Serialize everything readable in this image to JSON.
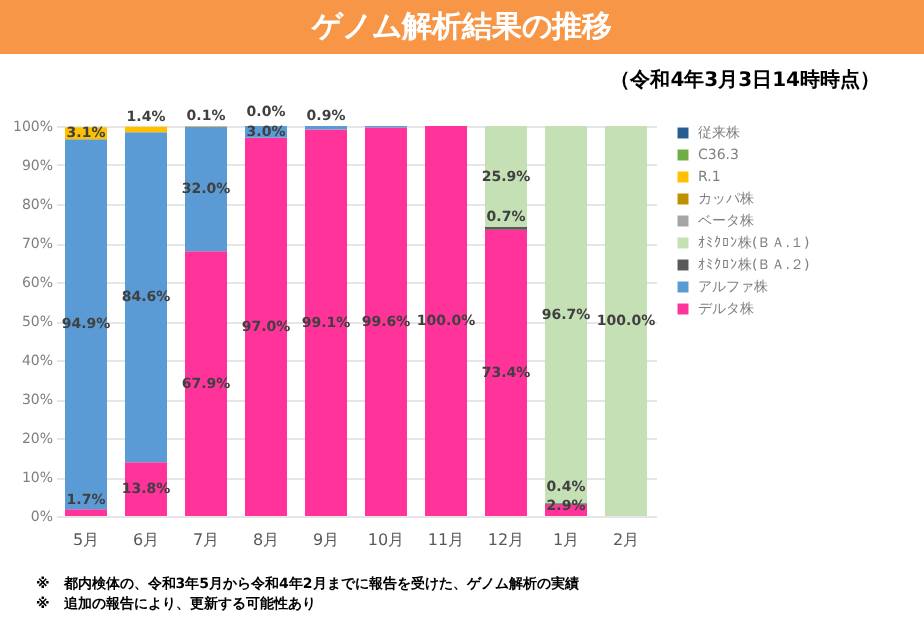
{
  "chart_data": {
    "type": "bar",
    "title": "ゲノム解析結果の推移",
    "subtitle": "（令和4年3月3日14時時点）",
    "categories": [
      "5月",
      "6月",
      "7月",
      "8月",
      "9月",
      "10月",
      "11月",
      "12月",
      "1月",
      "2月"
    ],
    "stacked": true,
    "legend": "right",
    "grid": "y",
    "ylim": [
      0,
      100
    ],
    "yticks": [
      {
        "value": 0,
        "label": "0%"
      },
      {
        "value": 10,
        "label": "10%"
      },
      {
        "value": 20,
        "label": "20%"
      },
      {
        "value": 30,
        "label": "30%"
      },
      {
        "value": 40,
        "label": "40%"
      },
      {
        "value": 50,
        "label": "50%"
      },
      {
        "value": 60,
        "label": "60%"
      },
      {
        "value": 70,
        "label": "70%"
      },
      {
        "value": 80,
        "label": "80%"
      },
      {
        "value": 90,
        "label": "90%"
      },
      {
        "value": 100,
        "label": "100%"
      }
    ],
    "series": [
      {
        "name": "デルタ株",
        "color": "#ff3399",
        "values": [
          1.7,
          13.8,
          67.9,
          97.0,
          99.1,
          99.6,
          100.0,
          73.4,
          2.9,
          null
        ],
        "value_labels": [
          "1.7%",
          "13.8%",
          "67.9%",
          "97.0%",
          "99.1%",
          "99.6%",
          "100.0%",
          "73.4%",
          "2.9%",
          null
        ]
      },
      {
        "name": "アルファ株",
        "color": "#5b9bd5",
        "values": [
          94.9,
          84.6,
          32.0,
          3.0,
          0.9,
          0.4,
          null,
          null,
          null,
          null
        ],
        "value_labels": [
          "94.9%",
          "84.6%",
          "32.0%",
          "3.0%",
          "0.9%",
          null,
          null,
          null,
          null,
          null
        ]
      },
      {
        "name": "ｵﾐｸﾛﾝ株(ＢＡ.２)",
        "color": "#595959",
        "values": [
          null,
          null,
          null,
          null,
          null,
          null,
          null,
          0.7,
          0.4,
          null
        ],
        "value_labels": [
          null,
          null,
          null,
          null,
          null,
          null,
          null,
          "0.7%",
          "0.4%",
          null
        ]
      },
      {
        "name": "ｵﾐｸﾛﾝ株(ＢＡ.１)",
        "color": "#c5e0b4",
        "values": [
          null,
          null,
          null,
          null,
          null,
          null,
          null,
          25.9,
          96.7,
          100.0
        ],
        "value_labels": [
          null,
          null,
          null,
          null,
          null,
          null,
          null,
          "25.9%",
          "96.7%",
          "100.0%"
        ]
      },
      {
        "name": "ベータ株",
        "color": "#a5a5a5",
        "values": [
          null,
          null,
          null,
          null,
          null,
          null,
          null,
          null,
          null,
          null
        ]
      },
      {
        "name": "カッパ株",
        "color": "#bf9000",
        "values": [
          null,
          null,
          null,
          null,
          null,
          null,
          null,
          null,
          null,
          null
        ]
      },
      {
        "name": "R.1",
        "color": "#ffc000",
        "values": [
          3.1,
          1.4,
          0.1,
          0.0,
          null,
          null,
          null,
          null,
          null,
          null
        ],
        "value_labels": [
          "3.1%",
          "1.4%",
          "0.1%",
          "0.0%",
          null,
          null,
          null,
          null,
          null,
          null
        ]
      },
      {
        "name": "C36.3",
        "color": "#70ad47",
        "values": [
          null,
          null,
          null,
          null,
          null,
          null,
          null,
          null,
          null,
          null
        ]
      },
      {
        "name": "従来株",
        "color": "#255e91",
        "values": [
          null,
          null,
          null,
          null,
          null,
          null,
          null,
          null,
          null,
          null
        ]
      }
    ],
    "annotations": [
      "※　都内検体の、令和3年5月から令和4年2月までに報告を受けた、ゲノム解析の実績",
      "※　追加の報告により、更新する可能性あり"
    ]
  }
}
